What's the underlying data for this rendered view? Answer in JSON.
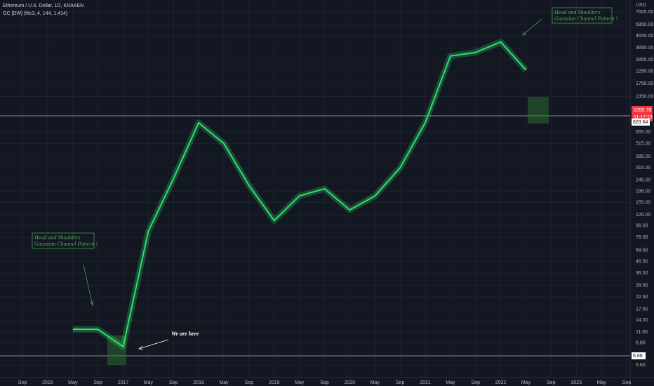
{
  "chart_data": {
    "type": "line",
    "title": "Ethereum / U.S. Dollar, 1D, KRAKEN",
    "subtitle": "GC [DW] (hlc3, 4, 144, 1.414)",
    "y_axis_label": "USD",
    "log_scale": true,
    "grid": true,
    "color": "#2ee06f",
    "categories": [
      "Sep",
      "2016",
      "May",
      "Sep",
      "2017",
      "May",
      "Sep",
      "2018",
      "May",
      "Sep",
      "2019",
      "May",
      "Sep",
      "2020",
      "May",
      "Sep",
      "2021",
      "May",
      "Sep",
      "2022",
      "May",
      "Sep",
      "2023",
      "May",
      "Sep"
    ],
    "values": [
      null,
      null,
      11.6,
      11.6,
      8.15,
      86,
      253,
      790,
      517,
      219,
      107,
      177,
      205,
      133,
      177,
      314,
      790,
      3090,
      3320,
      4110,
      2320,
      null,
      null,
      null,
      null
    ],
    "ylim": [
      4.33,
      9690
    ],
    "yticks": [
      {
        "value": 7600,
        "label": "7600.00"
      },
      {
        "value": 5850,
        "label": "5850.00"
      },
      {
        "value": 4650,
        "label": "4650.00"
      },
      {
        "value": 3650,
        "label": "3650.00"
      },
      {
        "value": 2850,
        "label": "2850.00"
      },
      {
        "value": 2250,
        "label": "2250.00"
      },
      {
        "value": 1750,
        "label": "1750.00"
      },
      {
        "value": 1350,
        "label": "1350.00"
      },
      {
        "value": 655,
        "label": "655.00"
      },
      {
        "value": 515,
        "label": "515.00"
      },
      {
        "value": 395,
        "label": "395.00"
      },
      {
        "value": 315,
        "label": "315.00"
      },
      {
        "value": 245,
        "label": "245.00"
      },
      {
        "value": 195,
        "label": "195.00"
      },
      {
        "value": 155,
        "label": "155.00"
      },
      {
        "value": 120,
        "label": "120.00"
      },
      {
        "value": 96,
        "label": "96.00"
      },
      {
        "value": 76,
        "label": "76.00"
      },
      {
        "value": 58.5,
        "label": "58.50"
      },
      {
        "value": 46.5,
        "label": "46.50"
      },
      {
        "value": 36.5,
        "label": "36.50"
      },
      {
        "value": 28.5,
        "label": "28.50"
      },
      {
        "value": 22.5,
        "label": "22.50"
      },
      {
        "value": 17.5,
        "label": "17.50"
      },
      {
        "value": 14,
        "label": "14.00"
      },
      {
        "value": 11,
        "label": "11.00"
      },
      {
        "value": 8.8,
        "label": "8.80"
      },
      {
        "value": 5.6,
        "label": "5.60"
      }
    ],
    "annotations": [
      "Head and Shoulders",
      "Gaussian Channel Pattern !",
      "We are here",
      "Head and Shoulders",
      "Gaussian Channel Pattern !"
    ],
    "price_labels": [
      "1050.78",
      "11:17:19",
      "829.64",
      "6.88"
    ]
  }
}
